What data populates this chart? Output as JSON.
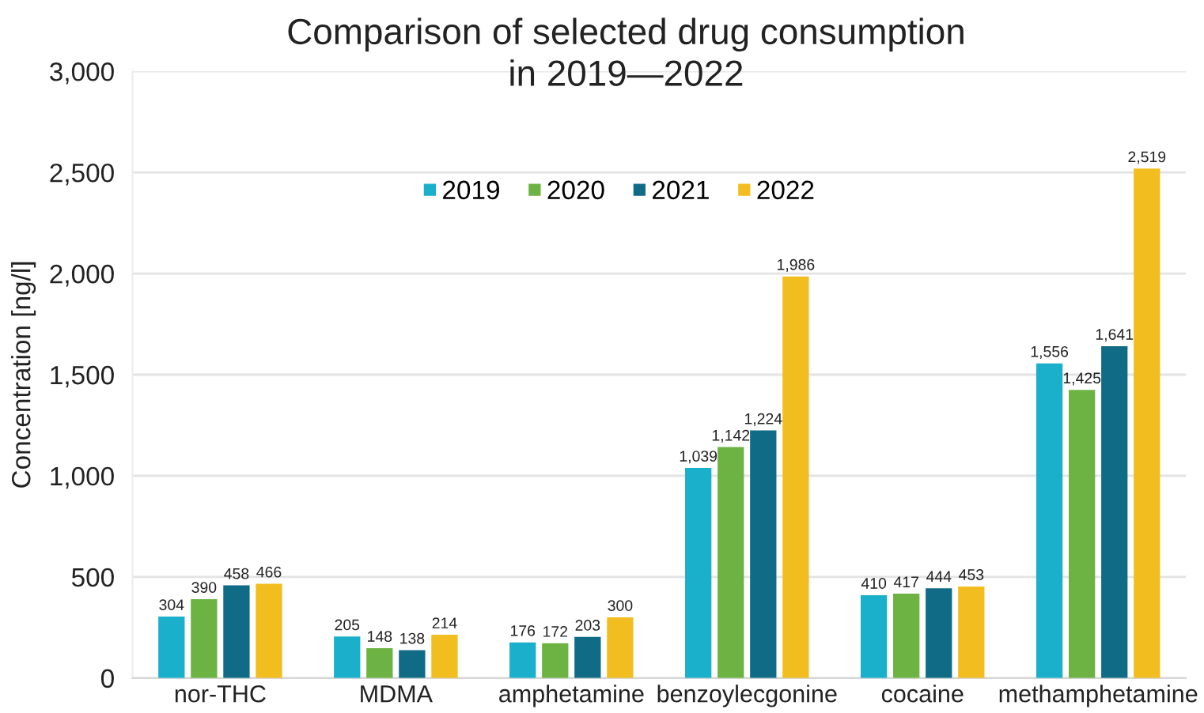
{
  "chart_data": {
    "type": "bar",
    "title": "Comparison of selected drug consumption\nin 2019—2022",
    "ylabel": "Concentration [ng/l]",
    "categories": [
      "nor-THC",
      "MDMA",
      "amphetamine",
      "benzoylecgonine",
      "cocaine",
      "methamphetamine"
    ],
    "series": [
      {
        "name": "2019",
        "color": "#1aafcb",
        "values": [
          304,
          205,
          176,
          1039,
          410,
          1556
        ],
        "value_labels": [
          "304",
          "205",
          "176",
          "1,039",
          "410",
          "1,556"
        ]
      },
      {
        "name": "2020",
        "color": "#6db343",
        "values": [
          390,
          148,
          172,
          1142,
          417,
          1425
        ],
        "value_labels": [
          "390",
          "148",
          "172",
          "1,142",
          "417",
          "1,425"
        ]
      },
      {
        "name": "2021",
        "color": "#0f6b86",
        "values": [
          458,
          138,
          203,
          1224,
          444,
          1641
        ],
        "value_labels": [
          "458",
          "138",
          "203",
          "1,224",
          "444",
          "1,641"
        ]
      },
      {
        "name": "2022",
        "color": "#f2bd1e",
        "values": [
          466,
          214,
          300,
          1986,
          453,
          2519
        ],
        "value_labels": [
          "466",
          "214",
          "300",
          "1,986",
          "453",
          "2,519"
        ]
      }
    ],
    "ylim": [
      0,
      3000
    ],
    "yticks": [
      0,
      500,
      {
        "value": 1000,
        "label": "1,000"
      },
      {
        "value": 1500,
        "label": "1,500"
      },
      {
        "value": 2000,
        "label": "2,000"
      },
      {
        "value": 2500,
        "label": "2,500"
      },
      {
        "value": 3000,
        "label": "3,000"
      }
    ],
    "grid": "y",
    "legend": "top"
  }
}
